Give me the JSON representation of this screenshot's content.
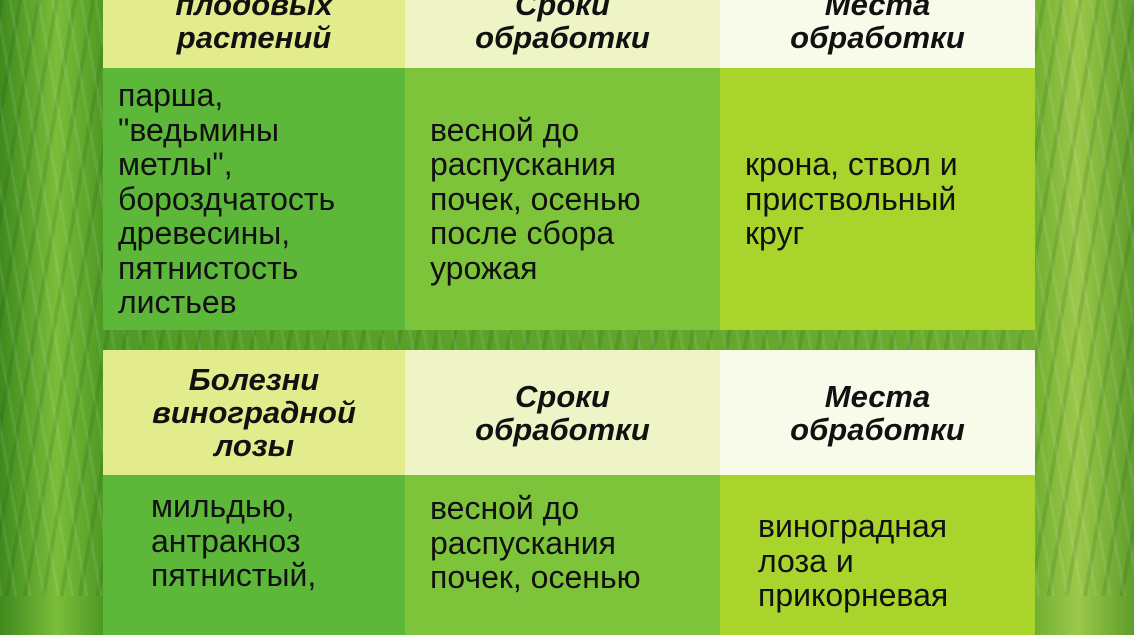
{
  "table1": {
    "headers": [
      "плодовых\nрастений",
      "Сроки\nобработки",
      "Места\nобработки"
    ],
    "row": [
      "парша,\n\"ведьмины\nметлы\",\nбороздчатость\nдревесины,\nпятнистость\nлистьев",
      "весной до\nраспускания\nпочек, осенью\nпосле сбора\nурожая",
      "крона, ствол и\nприствольный\nкруг"
    ]
  },
  "table2": {
    "headers": [
      "Болезни\nвиноградной\nлозы",
      "Сроки\nобработки",
      "Места\nобработки"
    ],
    "row": [
      "мильдью,\nантракноз\nпятнистый,",
      "весной до\nраспускания\nпочек, осенью",
      "виноградная\nлоза и\nприкорневая"
    ]
  }
}
